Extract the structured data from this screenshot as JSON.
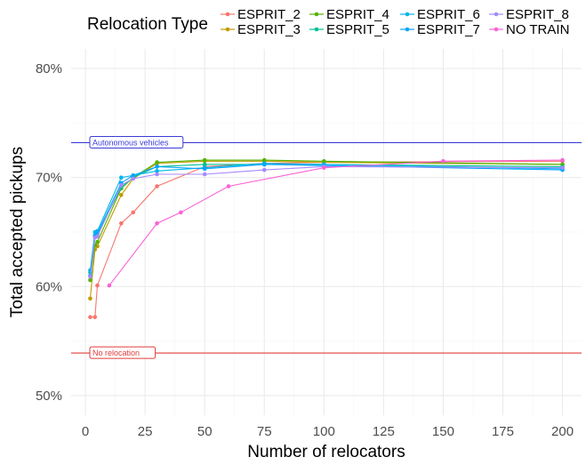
{
  "chart_data": {
    "type": "line",
    "xlabel": "Number of relocators",
    "ylabel": "Total accepted pickups",
    "xlim": [
      -6,
      208
    ],
    "ylim": [
      48.2,
      81.8
    ],
    "x_ticks": [
      0,
      25,
      50,
      75,
      100,
      125,
      150,
      175,
      200
    ],
    "y_ticks": [
      50,
      60,
      70,
      80
    ],
    "y_tick_labels": [
      "50%",
      "60%",
      "70%",
      "80%"
    ],
    "grid": true,
    "legend": {
      "title": "Relocation Type",
      "position": "top",
      "columns": [
        [
          "ESPRIT_2",
          "ESPRIT_3"
        ],
        [
          "ESPRIT_4",
          "ESPRIT_5"
        ],
        [
          "ESPRIT_6",
          "ESPRIT_7"
        ],
        [
          "ESPRIT_8",
          "NO TRAIN"
        ]
      ]
    },
    "reference_lines": [
      {
        "label": "Autonomous vehicles",
        "y": 73.2,
        "color": "#3b3bd9"
      },
      {
        "label": "No relocation",
        "y": 53.9,
        "color": "#e03c3c"
      }
    ],
    "series": [
      {
        "name": "ESPRIT_2",
        "color": "#F8766D",
        "x": [
          2,
          4,
          5,
          15,
          20,
          30,
          50,
          75,
          100,
          200
        ],
        "y": [
          57.2,
          57.2,
          60.1,
          65.8,
          66.8,
          69.2,
          71.0,
          71.3,
          71.4,
          71.5
        ]
      },
      {
        "name": "ESPRIT_3",
        "color": "#C49A00",
        "x": [
          2,
          4,
          5,
          15,
          20,
          30,
          50,
          75,
          100,
          200
        ],
        "y": [
          58.9,
          63.4,
          63.7,
          68.4,
          69.9,
          71.3,
          71.5,
          71.5,
          71.4,
          71.2
        ]
      },
      {
        "name": "ESPRIT_4",
        "color": "#53B400",
        "x": [
          2,
          4,
          5,
          15,
          20,
          30,
          50,
          75,
          100,
          200
        ],
        "y": [
          60.6,
          63.8,
          64.1,
          69.0,
          70.0,
          71.4,
          71.6,
          71.6,
          71.5,
          71.2
        ]
      },
      {
        "name": "ESPRIT_5",
        "color": "#00C094",
        "x": [
          2,
          4,
          5,
          15,
          20,
          30,
          50,
          75,
          100,
          200
        ],
        "y": [
          61.3,
          64.6,
          64.8,
          69.1,
          70.0,
          71.0,
          71.2,
          71.2,
          71.2,
          71.0
        ]
      },
      {
        "name": "ESPRIT_6",
        "color": "#00B6EB",
        "x": [
          2,
          4,
          5,
          15,
          20,
          30,
          50,
          75,
          100,
          200
        ],
        "y": [
          61.5,
          65.0,
          65.1,
          70.0,
          70.2,
          70.6,
          70.9,
          71.3,
          71.2,
          70.8
        ]
      },
      {
        "name": "ESPRIT_7",
        "color": "#06A4FF",
        "x": [
          2,
          4,
          5,
          15,
          20,
          30,
          50,
          75,
          100,
          200
        ],
        "y": [
          61.0,
          64.7,
          64.9,
          69.5,
          70.2,
          71.0,
          70.8,
          71.2,
          71.1,
          70.7
        ]
      },
      {
        "name": "ESPRIT_8",
        "color": "#A58AFF",
        "x": [
          2,
          4,
          5,
          15,
          20,
          30,
          50,
          75,
          100,
          200
        ],
        "y": [
          60.9,
          64.5,
          64.6,
          69.3,
          69.9,
          70.3,
          70.3,
          70.7,
          71.0,
          70.9
        ]
      },
      {
        "name": "NO TRAIN",
        "color": "#FB61D7",
        "x": [
          10,
          30,
          40,
          60,
          100,
          150,
          200
        ],
        "y": [
          60.1,
          65.8,
          66.8,
          69.2,
          70.9,
          71.5,
          71.6
        ]
      }
    ]
  }
}
